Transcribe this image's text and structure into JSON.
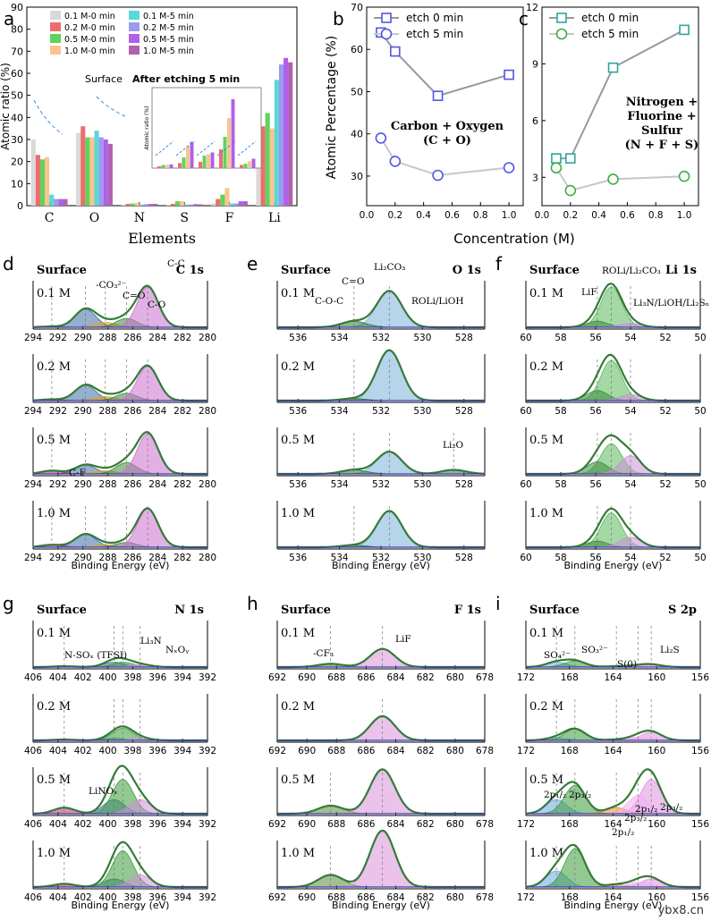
{
  "chart_data": [
    {
      "panel": "a",
      "type": "bar",
      "xlabel": "Elements",
      "ylabel": "Atomic ratio (%)",
      "ylim": [
        0,
        90
      ],
      "yticks": [
        "0",
        "10",
        "20",
        "30",
        "40",
        "50",
        "60",
        "70",
        "80",
        "90"
      ],
      "categories": [
        "C",
        "O",
        "N",
        "S",
        "F",
        "Li"
      ],
      "series": [
        {
          "name": "0.1 M-0 min",
          "color": "#d9d9d9",
          "values": [
            30,
            33,
            0.5,
            0.5,
            1,
            32
          ]
        },
        {
          "name": "0.2 M-0 min",
          "color": "#f06c6c",
          "values": [
            23,
            36,
            0.8,
            0.8,
            3,
            36
          ]
        },
        {
          "name": "0.5 M-0 min",
          "color": "#5fd35f",
          "values": [
            21,
            31,
            1,
            2,
            5,
            42
          ]
        },
        {
          "name": "1.0 M-0 min",
          "color": "#f9c48d",
          "values": [
            22,
            31,
            1.2,
            2,
            8,
            35
          ]
        },
        {
          "name": "0.1 M-5 min",
          "color": "#5ad7d7",
          "values": [
            5,
            34,
            0.5,
            0.5,
            1,
            57
          ]
        },
        {
          "name": "0.2 M-5 min",
          "color": "#9a9af0",
          "values": [
            3,
            31,
            0.7,
            0.5,
            1,
            64
          ]
        },
        {
          "name": "0.5 M-5 min",
          "color": "#b060e6",
          "values": [
            3,
            30,
            0.8,
            0.7,
            2,
            67
          ]
        },
        {
          "name": "1.0 M-5 min",
          "color": "#b061b0",
          "values": [
            3,
            28,
            0.8,
            0.6,
            2,
            65
          ]
        }
      ],
      "annotations": {
        "surface": "Surface",
        "etched": "After etching 5 min"
      },
      "inset_ylabel": "Atomic ratio (%)",
      "inset_values": [
        [
          0.3,
          0.5,
          0.5,
          0.6
        ],
        [
          0.8,
          1.7,
          3.5,
          4.2
        ],
        [
          1,
          2,
          2.2,
          2.5
        ],
        [
          3,
          5,
          8,
          11
        ],
        [
          0.5,
          0.7,
          1.1,
          1.5
        ]
      ]
    },
    {
      "panel": "b",
      "type": "line",
      "xlabel": "Concentration (M)",
      "ylabel": "Atomic Percentage (%)",
      "xlim": [
        0,
        1.1
      ],
      "ylim": [
        23,
        70
      ],
      "xticks": [
        "0.0",
        "0.2",
        "0.4",
        "0.6",
        "0.8",
        "1.0"
      ],
      "yticks": [
        "30",
        "40",
        "50",
        "60",
        "70"
      ],
      "x": [
        0.1,
        0.2,
        0.5,
        1.0
      ],
      "series": [
        {
          "name": "etch 0 min",
          "values": [
            64,
            59.5,
            49,
            54
          ]
        },
        {
          "name": "etch 5 min",
          "values": [
            39,
            33.5,
            30.2,
            32
          ]
        }
      ],
      "annotation": "Carbon + Oxygen\n(C + O)"
    },
    {
      "panel": "c",
      "type": "line",
      "xlim": [
        0,
        1.1
      ],
      "ylim": [
        1.5,
        12
      ],
      "xticks": [
        "0.0",
        "0.2",
        "0.4",
        "0.6",
        "0.8",
        "1.0"
      ],
      "yticks": [
        "3",
        "6",
        "9",
        "12"
      ],
      "x": [
        0.1,
        0.2,
        0.5,
        1.0
      ],
      "series": [
        {
          "name": "etch 0 min",
          "values": [
            4.0,
            4.0,
            8.8,
            10.8
          ]
        },
        {
          "name": "etch 5 min",
          "values": [
            3.5,
            2.3,
            2.9,
            3.05
          ]
        }
      ],
      "annotation": "Nitrogen +\nFluorine +\nSulfur\n(N + F + S)",
      "shared_xlabel": "Concentration (M)"
    },
    {
      "panel": "d",
      "type": "line",
      "title": "C 1s",
      "surface": "Surface",
      "concentrations": [
        "0.1 M",
        "0.2 M",
        "0.5 M",
        "1.0 M"
      ],
      "xlim": [
        294,
        280
      ],
      "ticks": [
        "294",
        "292",
        "290",
        "288",
        "286",
        "284",
        "282",
        "280"
      ],
      "xlabel": "Binding Energy (eV)",
      "peak_labels": [
        "-CO₃²⁻",
        "C=O",
        "C-O",
        "C-C",
        "C-F"
      ],
      "peaks": [
        {
          "pos": 289.8,
          "color": "#3e6fa8"
        },
        {
          "pos": 288.2,
          "color": "#e0a020"
        },
        {
          "pos": 286.5,
          "color": "#3a8a3a"
        },
        {
          "pos": 284.8,
          "color": "#cc6fd0"
        },
        {
          "pos": 292.5,
          "color": "#c0306a"
        }
      ],
      "rows": [
        {
          "amps": [
            0.45,
            0.12,
            0.22,
            1.0,
            0.02
          ]
        },
        {
          "amps": [
            0.38,
            0.1,
            0.18,
            0.85,
            0.03
          ]
        },
        {
          "amps": [
            0.22,
            0.08,
            0.28,
            1.0,
            0.08
          ]
        },
        {
          "amps": [
            0.32,
            0.06,
            0.12,
            0.95,
            0.06
          ]
        }
      ]
    },
    {
      "panel": "e",
      "type": "line",
      "title": "O 1s",
      "surface": "Surface",
      "concentrations": [
        "0.1 M",
        "0.2 M",
        "0.5 M",
        "1.0 M"
      ],
      "xlim": [
        537,
        527
      ],
      "ticks": [
        "536",
        "534",
        "532",
        "530",
        "528"
      ],
      "xlabel": "Binding Energy (eV)",
      "peak_labels": [
        "Li₂CO₃",
        "C=O",
        "C-O-C",
        "ROLi/LiOH",
        "Li₂O"
      ],
      "peaks": [
        {
          "pos": 531.6,
          "color": "#7ab0d8"
        },
        {
          "pos": 533.3,
          "color": "#2f7a2f"
        },
        {
          "pos": 528.5,
          "color": "#3a7a5a"
        }
      ],
      "rows": [
        {
          "amps": [
            0.9,
            0.15,
            0.0
          ]
        },
        {
          "amps": [
            1.25,
            0.05,
            0.0
          ]
        },
        {
          "amps": [
            0.55,
            0.1,
            0.1
          ]
        },
        {
          "amps": [
            0.9,
            0.05,
            0.0
          ]
        }
      ]
    },
    {
      "panel": "f",
      "type": "line",
      "title": "Li 1s",
      "surface": "Surface",
      "concentrations": [
        "0.1 M",
        "0.2 M",
        "0.5 M",
        "1.0 M"
      ],
      "xlim": [
        60,
        50
      ],
      "ticks": [
        "60",
        "58",
        "56",
        "54",
        "52",
        "50"
      ],
      "xlabel": "Binding Energy (eV)",
      "peak_labels": [
        "ROLi/Li₂CO₃",
        "LiF",
        "Li₃N/LiOH/Li₂Sₙ"
      ],
      "peaks": [
        {
          "pos": 55.1,
          "color": "#5ab85a"
        },
        {
          "pos": 55.9,
          "color": "#3a8a3a"
        },
        {
          "pos": 54.0,
          "color": "#cc8fd8"
        }
      ],
      "rows": [
        {
          "amps": [
            1.0,
            0.15,
            0.1
          ]
        },
        {
          "amps": [
            1.0,
            0.25,
            0.15
          ]
        },
        {
          "amps": [
            0.75,
            0.3,
            0.45
          ]
        },
        {
          "amps": [
            0.85,
            0.15,
            0.25
          ]
        }
      ]
    },
    {
      "panel": "g",
      "type": "line",
      "title": "N 1s",
      "surface": "Surface",
      "concentrations": [
        "0.1 M",
        "0.2 M",
        "0.5 M",
        "1.0 M"
      ],
      "xlim": [
        406,
        392
      ],
      "ticks": [
        "406",
        "404",
        "402",
        "400",
        "398",
        "396",
        "394",
        "392"
      ],
      "xlabel": "Binding Energy (eV)",
      "peak_labels": [
        "N-SOₓ (TFSI)",
        "Li₃N",
        "NₓOᵧ",
        "LiNOₓ",
        "LiNOₓ"
      ],
      "peaks": [
        {
          "pos": 399.5,
          "color": "#4a6fa8"
        },
        {
          "pos": 398.8,
          "color": "#3a9a3a"
        },
        {
          "pos": 397.4,
          "color": "#d08fd8"
        },
        {
          "pos": 403.5,
          "color": "#c03060"
        }
      ],
      "rows": [
        {
          "amps": [
            0.12,
            0.12,
            0.06,
            0.02
          ]
        },
        {
          "amps": [
            0.05,
            0.3,
            0.05,
            0.02
          ]
        },
        {
          "amps": [
            0.35,
            0.85,
            0.35,
            0.15
          ]
        },
        {
          "amps": [
            0.2,
            0.9,
            0.3,
            0.08
          ]
        }
      ]
    },
    {
      "panel": "h",
      "type": "line",
      "title": "F 1s",
      "surface": "Surface",
      "concentrations": [
        "0.1 M",
        "0.2 M",
        "0.5 M",
        "1.0 M"
      ],
      "xlim": [
        692,
        678
      ],
      "ticks": [
        "692",
        "690",
        "688",
        "686",
        "684",
        "682",
        "680",
        "678"
      ],
      "xlabel": "Binding Energy (eV)",
      "peak_labels": [
        "-CF₃",
        "LiF"
      ],
      "peaks": [
        {
          "pos": 688.4,
          "color": "#5a8a3a"
        },
        {
          "pos": 684.9,
          "color": "#d88fd8"
        }
      ],
      "rows": [
        {
          "amps": [
            0.08,
            0.45
          ]
        },
        {
          "amps": [
            0.0,
            0.6
          ]
        },
        {
          "amps": [
            0.2,
            1.1
          ]
        },
        {
          "amps": [
            0.3,
            1.4
          ]
        }
      ]
    },
    {
      "panel": "i",
      "type": "line",
      "title": "S 2p",
      "surface": "Surface",
      "concentrations": [
        "0.1 M",
        "0.2 M",
        "0.5 M",
        "1.0 M"
      ],
      "xlim": [
        172,
        156
      ],
      "ticks": [
        "172",
        "168",
        "164",
        "160",
        "156"
      ],
      "xlabel": "Binding Energy (eV)",
      "peak_labels": [
        "SO₄²⁻",
        "SO₃²⁻",
        "S(0)",
        "Li₂S",
        "2p₁/₂",
        "2p₃/₂",
        "2p₃/₂",
        "2p₁/₂",
        "2p₁/₂",
        "2p₃/₂",
        "2p₁/₂",
        "2p₃/₂"
      ],
      "peaks": [
        {
          "pos": 169.2,
          "color": "#6aa8e0"
        },
        {
          "pos": 167.5,
          "color": "#3a9a3a"
        },
        {
          "pos": 163.7,
          "color": "#e09020"
        },
        {
          "pos": 160.5,
          "color": "#e08fe0"
        },
        {
          "pos": 161.7,
          "color": "#f0b0f0"
        }
      ],
      "rows": [
        {
          "amps": [
            0.12,
            0.15,
            0.02,
            0.06,
            0.03
          ]
        },
        {
          "amps": [
            0.06,
            0.28,
            0.02,
            0.2,
            0.08
          ]
        },
        {
          "amps": [
            0.35,
            0.7,
            0.15,
            0.85,
            0.45
          ]
        },
        {
          "amps": [
            0.4,
            0.95,
            0.06,
            0.2,
            0.12
          ]
        }
      ]
    }
  ],
  "watermark": "ybx8.cn"
}
